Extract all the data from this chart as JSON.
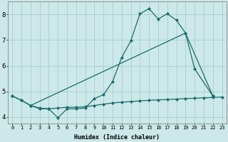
{
  "bg_color": "#cce8e8",
  "line_color": "#1a6b6b",
  "grid_color": "#aacece",
  "xlabel": "Humidex (Indice chaleur)",
  "xlim_min": -0.5,
  "xlim_max": 23.5,
  "ylim_min": 3.75,
  "ylim_max": 8.5,
  "yticks": [
    4,
    5,
    6,
    7,
    8
  ],
  "xticks": [
    0,
    1,
    2,
    3,
    4,
    5,
    6,
    7,
    8,
    9,
    10,
    11,
    12,
    13,
    14,
    15,
    16,
    17,
    18,
    19,
    20,
    21,
    22,
    23
  ],
  "line1_x": [
    0,
    1,
    2,
    3,
    4,
    5,
    6,
    7,
    8,
    9,
    10,
    11,
    12,
    13,
    14,
    15,
    16,
    17,
    18,
    19,
    20,
    22
  ],
  "line1_y": [
    4.82,
    4.65,
    4.45,
    4.32,
    4.32,
    3.97,
    4.32,
    4.32,
    4.35,
    4.72,
    4.87,
    5.38,
    6.32,
    6.97,
    8.02,
    8.22,
    7.82,
    8.02,
    7.77,
    7.27,
    5.88,
    4.82
  ],
  "line2_x": [
    0,
    1,
    2,
    3,
    4,
    5,
    6,
    7,
    8,
    9,
    10,
    11,
    12,
    13,
    14,
    15,
    16,
    17,
    18,
    19,
    20,
    21,
    22,
    23
  ],
  "line2_y": [
    4.82,
    4.65,
    4.45,
    4.35,
    4.32,
    4.35,
    4.38,
    4.38,
    4.4,
    4.45,
    4.5,
    4.55,
    4.58,
    4.6,
    4.63,
    4.65,
    4.67,
    4.68,
    4.7,
    4.72,
    4.73,
    4.75,
    4.76,
    4.78
  ],
  "line3_x": [
    2,
    19,
    22
  ],
  "line3_y": [
    4.45,
    7.27,
    4.82
  ],
  "ms": 2.2,
  "lw": 0.9,
  "xlabel_fontsize": 6.0,
  "xtick_fontsize": 5.0,
  "ytick_fontsize": 6.5
}
